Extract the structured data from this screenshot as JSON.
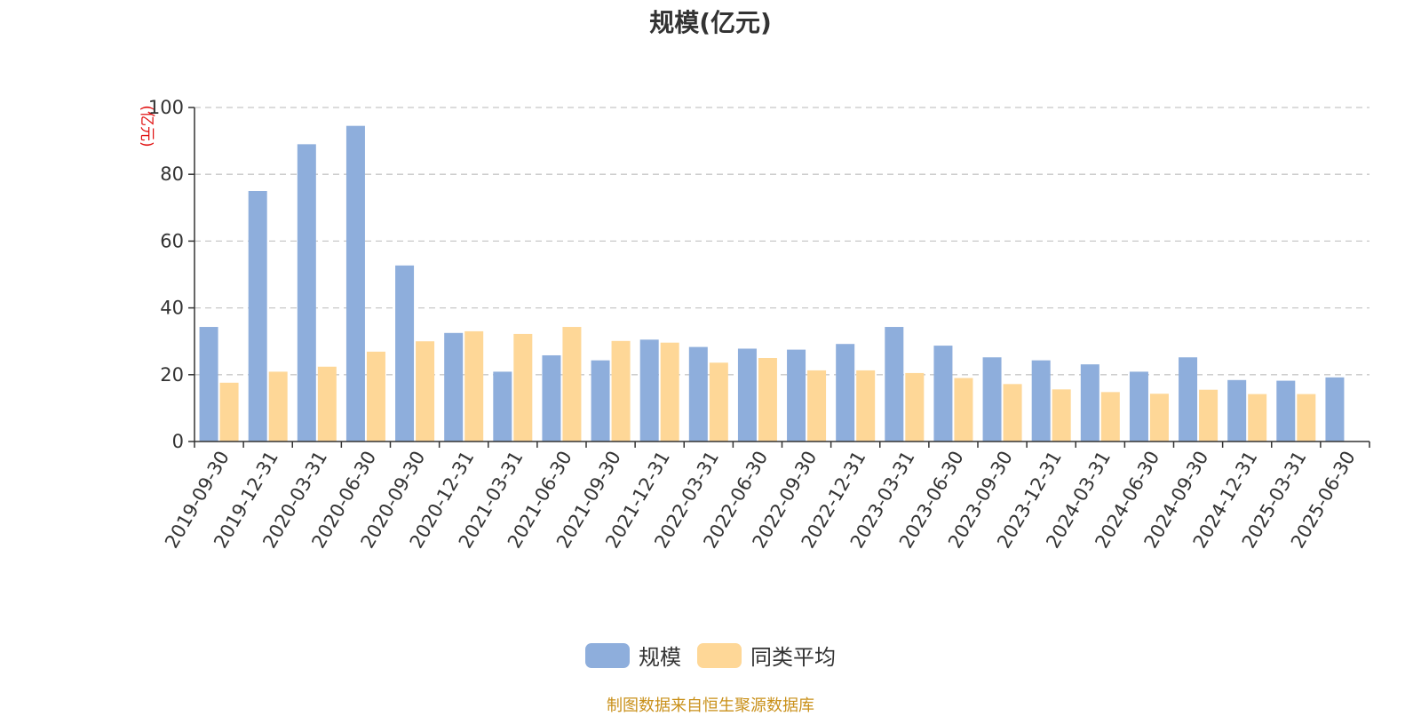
{
  "chart_data": {
    "type": "bar",
    "title": "规模(亿元)",
    "ylabel": "(亿元)",
    "xlabel": "",
    "ylim": [
      0,
      100
    ],
    "yticks": [
      0,
      20,
      40,
      60,
      80,
      100
    ],
    "grid": true,
    "legend_position": "bottom-center",
    "categories": [
      "2019-09-30",
      "2019-12-31",
      "2020-03-31",
      "2020-06-30",
      "2020-09-30",
      "2020-12-31",
      "2021-03-31",
      "2021-06-30",
      "2021-09-30",
      "2021-12-31",
      "2022-03-31",
      "2022-06-30",
      "2022-09-30",
      "2022-12-31",
      "2023-03-31",
      "2023-06-30",
      "2023-09-30",
      "2023-12-31",
      "2024-03-31",
      "2024-06-30",
      "2024-09-30",
      "2024-12-31",
      "2025-03-31",
      "2025-06-30"
    ],
    "series": [
      {
        "name": "规模",
        "color": "#8eaedc",
        "values": [
          34.3,
          75.0,
          89.0,
          94.5,
          52.7,
          32.5,
          20.9,
          25.8,
          24.3,
          30.5,
          28.3,
          27.8,
          27.5,
          29.2,
          34.3,
          28.7,
          25.2,
          24.3,
          23.1,
          20.9,
          25.2,
          18.4,
          18.2,
          19.2
        ]
      },
      {
        "name": "同类平均",
        "color": "#fed797",
        "values": [
          17.6,
          20.9,
          22.4,
          26.9,
          30.0,
          33.0,
          32.2,
          34.3,
          30.1,
          29.6,
          23.6,
          25.0,
          21.3,
          21.3,
          20.5,
          19.0,
          17.2,
          15.6,
          14.8,
          14.3,
          15.5,
          14.2,
          14.2,
          null
        ]
      }
    ]
  },
  "source_note": "制图数据来自恒生聚源数据库"
}
